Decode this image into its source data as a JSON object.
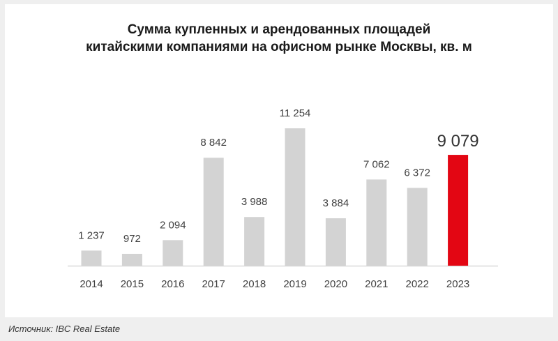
{
  "chart_data": {
    "type": "bar",
    "title_lines": [
      "Сумма купленных и арендованных площадей",
      "китайскими компаниями на офисном рынке Москвы, кв. м"
    ],
    "categories": [
      "2014",
      "2015",
      "2016",
      "2017",
      "2018",
      "2019",
      "2020",
      "2021",
      "2022",
      "2023"
    ],
    "values": [
      1237,
      972,
      2094,
      8842,
      3988,
      11254,
      3884,
      7062,
      6372,
      9079
    ],
    "data_labels": [
      "1 237",
      "972",
      "2 094",
      "8 842",
      "3 988",
      "11 254",
      "3 884",
      "7 062",
      "6 372",
      "9 079"
    ],
    "highlight_index": 9,
    "xlabel": "",
    "ylabel": "",
    "ylim": [
      0,
      11254
    ],
    "grid": false,
    "colors": {
      "bar": "#d3d3d3",
      "highlight": "#e30613",
      "axis": "#d9d9d9",
      "label": "#404040"
    }
  },
  "footer": {
    "source": "Источник: IBC Real Estate"
  }
}
